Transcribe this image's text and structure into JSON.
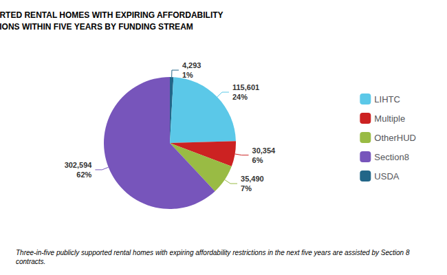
{
  "chart_data": {
    "type": "pie",
    "title": "PUBLICLY SUPPORTED RENTAL HOMES WITH EXPIRING AFFORDABILITY\nRESTRICTIONS WITHIN FIVE YEARS BY FUNDING STREAM",
    "footnote": "Three-in-five publicly supported rental homes with expiring affordability restrictions in the next five years are assisted by Section 8 contracts.",
    "categories": [
      "USDA",
      "LIHTC",
      "Multiple",
      "OtherHUD",
      "Section8"
    ],
    "values": [
      4293,
      115601,
      30354,
      35490,
      302594
    ],
    "value_labels": [
      "4,293",
      "115,601",
      "30,354",
      "35,490",
      "302,594"
    ],
    "percent_labels": [
      "1%",
      "24%",
      "6%",
      "7%",
      "62%"
    ],
    "colors": [
      "#226688",
      "#5BC8E8",
      "#CC2222",
      "#99BB44",
      "#7755BB"
    ],
    "legend_entries": [
      "LIHTC",
      "Multiple",
      "OtherHUD",
      "Section8",
      "USDA"
    ],
    "legend": "right",
    "data_labels": true
  }
}
